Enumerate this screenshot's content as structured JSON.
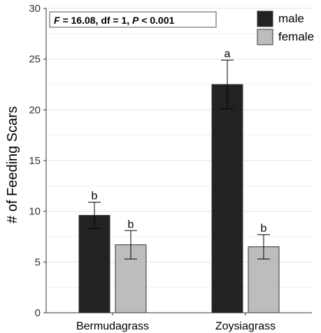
{
  "chart_data": {
    "type": "bar",
    "categories": [
      "Bermudagrass",
      "Zoysiagrass"
    ],
    "series": [
      {
        "name": "male",
        "color": "#222222",
        "values": [
          9.6,
          22.5
        ],
        "errors": [
          1.3,
          2.4
        ],
        "labels": [
          "b",
          "a"
        ]
      },
      {
        "name": "female",
        "color": "#bdbdbd",
        "values": [
          6.7,
          6.5
        ],
        "errors": [
          1.4,
          1.2
        ],
        "labels": [
          "b",
          "b"
        ]
      }
    ],
    "ylabel": "# of Feeding Scars",
    "xlabel": "",
    "ylim": [
      0,
      30
    ],
    "yticks": [
      "0",
      "5",
      "10",
      "15",
      "20",
      "25",
      "30"
    ],
    "grid": true,
    "legend_position": "top-right",
    "annotation": {
      "parts": [
        {
          "text": "F",
          "italic": true
        },
        {
          "text": " = 16.08, df = 1, ",
          "italic": false
        },
        {
          "text": "P",
          "italic": true
        },
        {
          "text": " < 0.001",
          "italic": false
        }
      ]
    }
  }
}
